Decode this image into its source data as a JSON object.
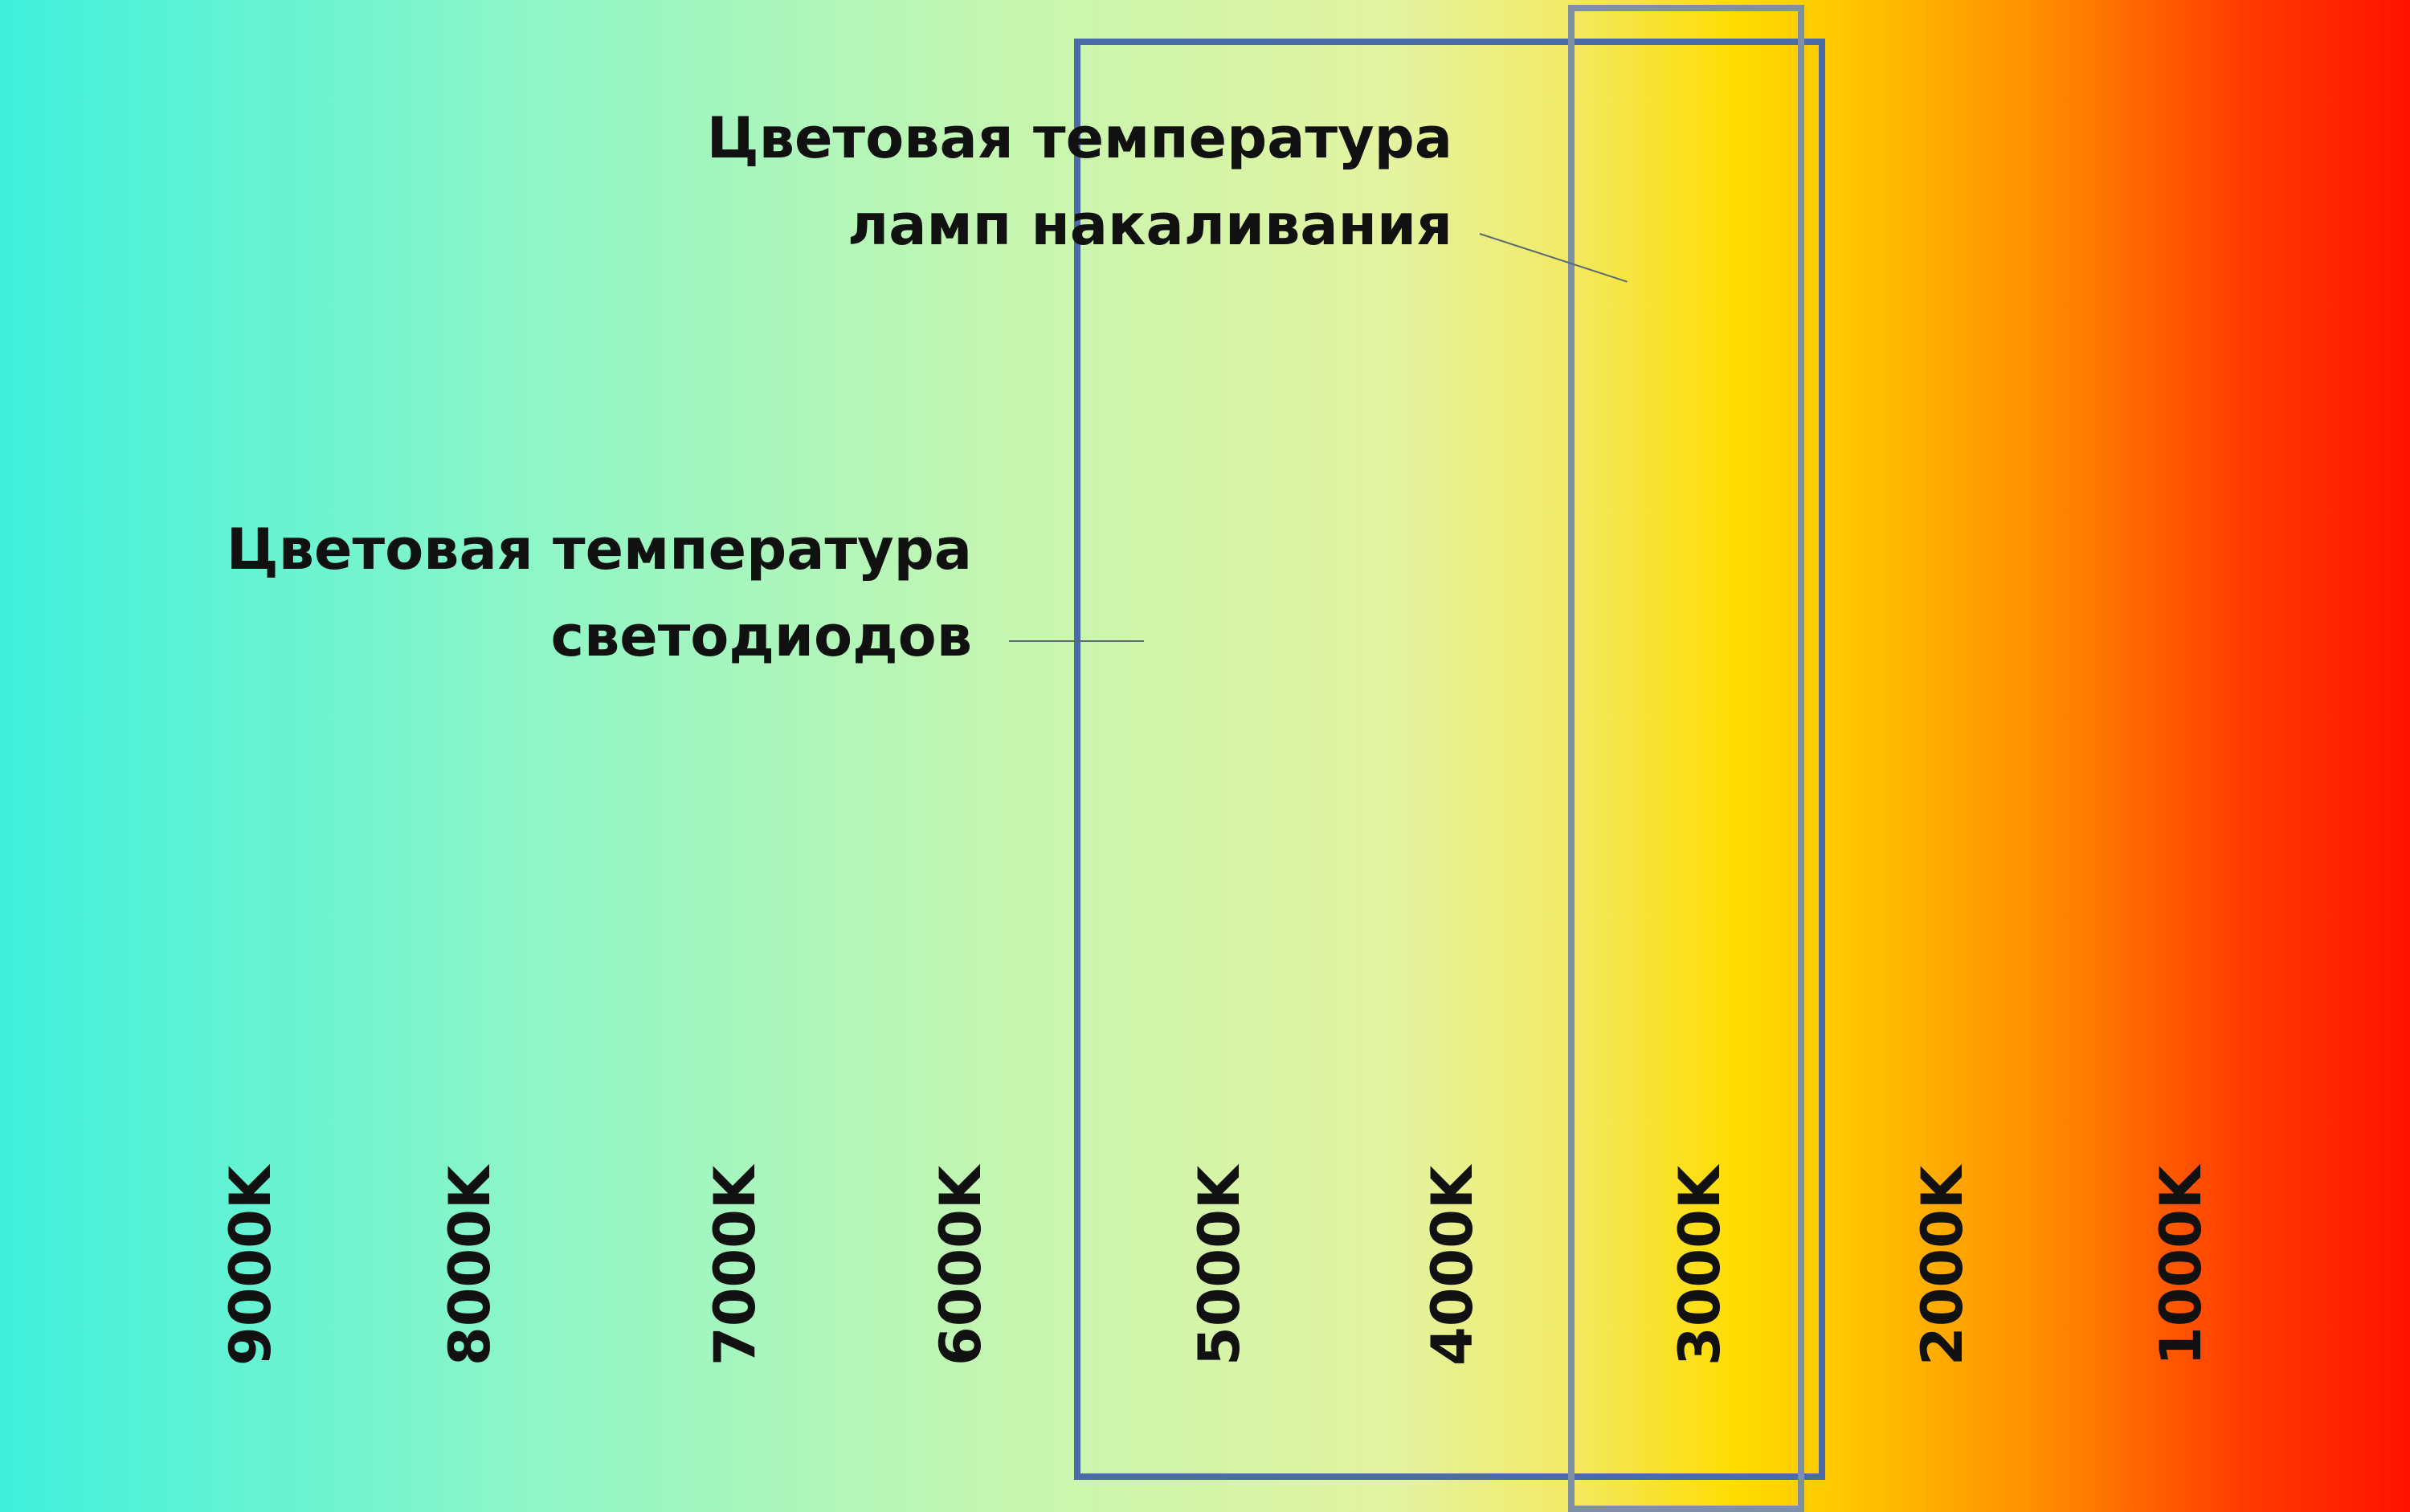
{
  "colors": {
    "cool": "#3ff0dc",
    "neutral": "#dff2a4",
    "warm": "#ffdc00",
    "hot": "#ff1200",
    "led_frame": "#4a6aa8",
    "incandescent_frame": "#7f8fa4",
    "text": "#111111"
  },
  "diagram": {
    "incandescent_caption": {
      "line1": "Цветовая температура",
      "line2": "ламп накаливания"
    },
    "led_caption": {
      "line1": "Цветовая температура",
      "line2": "светодиодов"
    },
    "scale": [
      "9000K",
      "8000K",
      "7000K",
      "6000K",
      "5000K",
      "4000K",
      "3000K",
      "2000K",
      "1000K"
    ]
  }
}
